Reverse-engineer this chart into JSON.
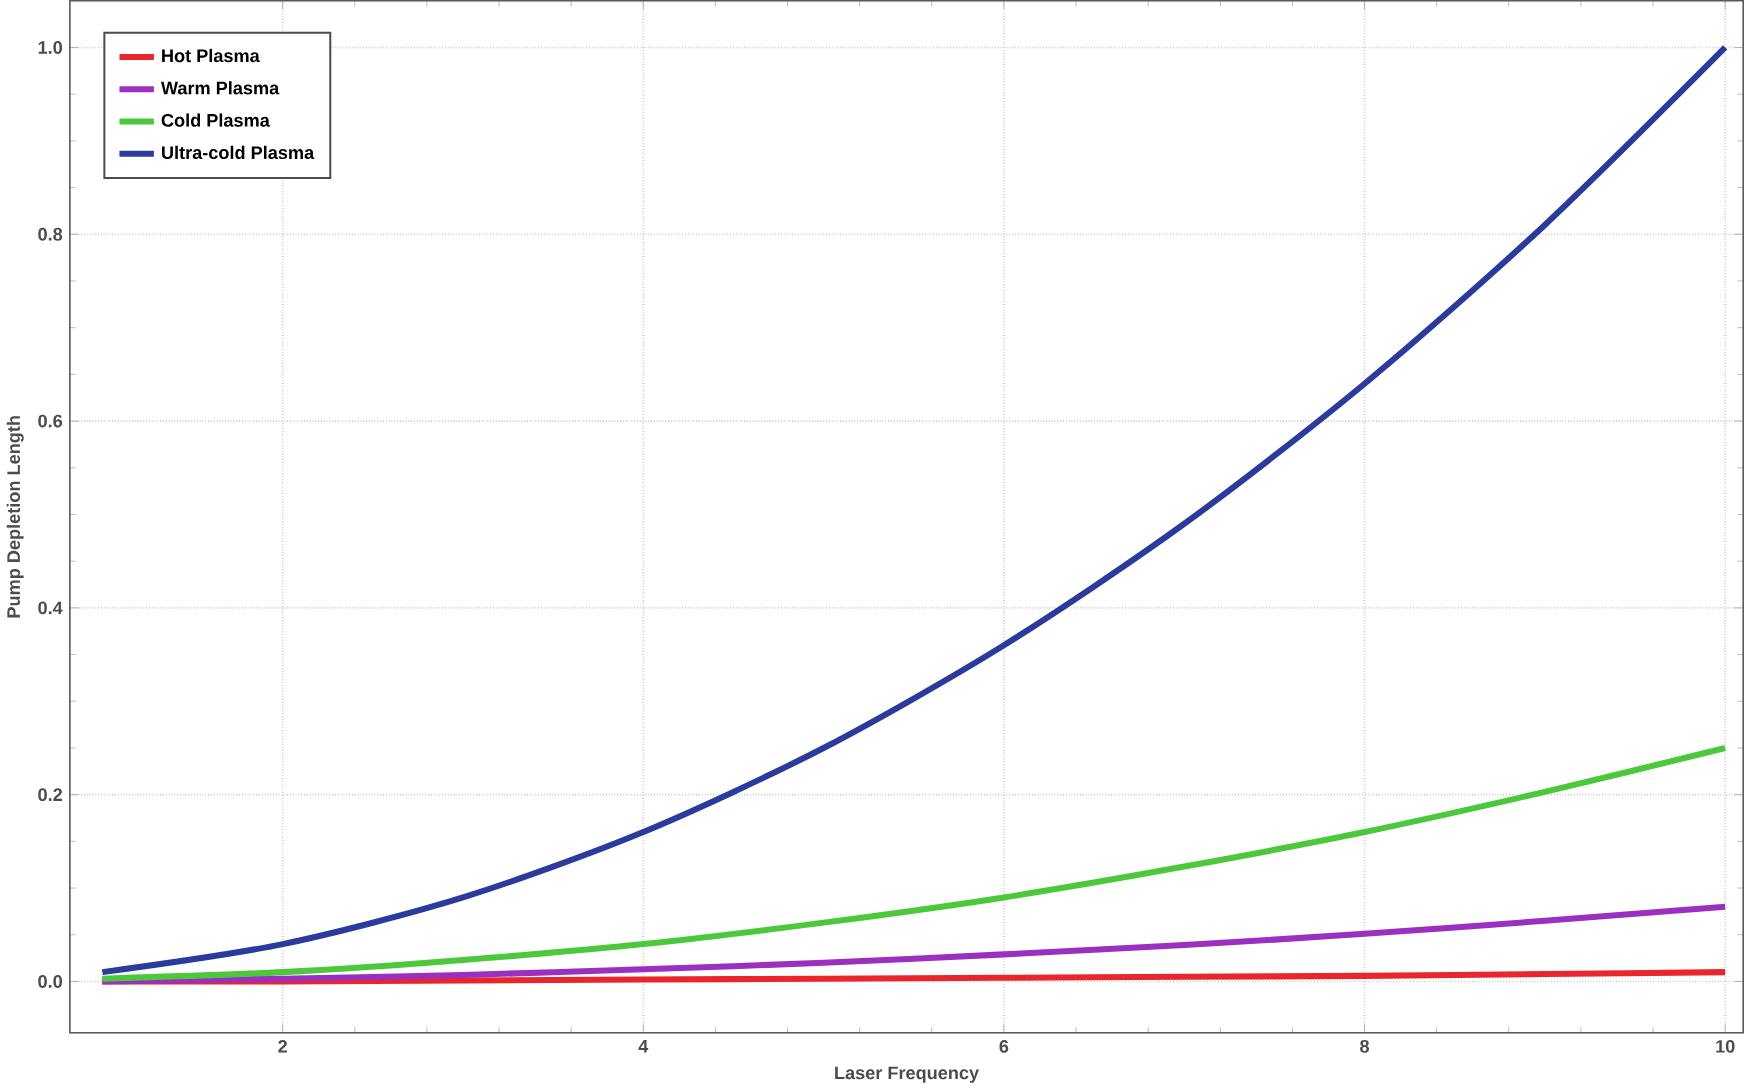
{
  "chart_data": {
    "type": "line",
    "xlabel": "Laser Frequency",
    "ylabel": "Pump Depletion Length",
    "x": [
      1,
      2,
      3,
      4,
      5,
      6,
      7,
      8,
      9,
      10
    ],
    "series": [
      {
        "name": "Hot Plasma",
        "color": "#e8262b",
        "values": [
          0.0,
          0.0,
          0.001,
          0.002,
          0.003,
          0.004,
          0.005,
          0.006,
          0.008,
          0.01
        ]
      },
      {
        "name": "Warm Plasma",
        "color": "#9b2fc0",
        "values": [
          0.0,
          0.003,
          0.007,
          0.013,
          0.02,
          0.029,
          0.039,
          0.051,
          0.065,
          0.08
        ]
      },
      {
        "name": "Cold Plasma",
        "color": "#4dc83c",
        "values": [
          0.003,
          0.01,
          0.023,
          0.04,
          0.063,
          0.09,
          0.123,
          0.16,
          0.203,
          0.25
        ]
      },
      {
        "name": "Ultra-cold Plasma",
        "color": "#2a3b9c",
        "values": [
          0.01,
          0.04,
          0.09,
          0.16,
          0.25,
          0.36,
          0.49,
          0.64,
          0.81,
          1.0
        ]
      }
    ],
    "xlim": [
      0.82,
      10.1
    ],
    "ylim": [
      -0.055,
      1.05
    ],
    "xticks": [
      2,
      4,
      6,
      8,
      10
    ],
    "yticks": [
      {
        "value": 0,
        "label": "0.0"
      },
      {
        "value": 0.2,
        "label": "0.2"
      },
      {
        "value": 0.4,
        "label": "0.4"
      },
      {
        "value": 0.6,
        "label": "0.6"
      },
      {
        "value": 0.8,
        "label": "0.8"
      },
      {
        "value": 1.0,
        "label": "1.0"
      }
    ],
    "grid": true,
    "legend": "top left",
    "line_style": "solid",
    "marker": "none"
  }
}
